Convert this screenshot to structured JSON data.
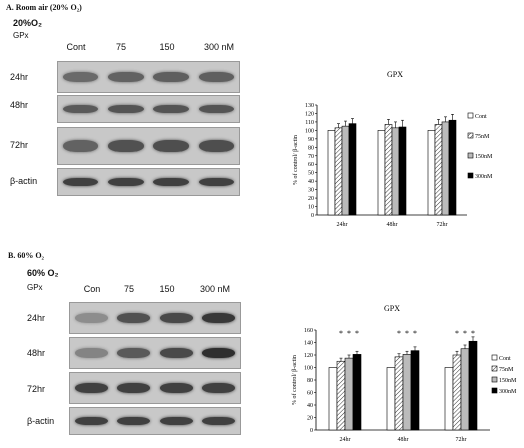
{
  "panelA": {
    "title": "A. Room air (20% O₂)",
    "condition": "20%O₂",
    "gpx_label": "GPx",
    "lanes": [
      "Cont",
      "75",
      "150",
      "300 nM"
    ],
    "rows": [
      "24hr",
      "48hr",
      "72hr",
      "β-actin"
    ],
    "band_intensity": [
      [
        0.55,
        0.6,
        0.62,
        0.62
      ],
      [
        0.65,
        0.68,
        0.68,
        0.68
      ],
      [
        0.6,
        0.7,
        0.72,
        0.72
      ],
      [
        0.8,
        0.8,
        0.8,
        0.8
      ]
    ]
  },
  "panelB": {
    "title": "B. 60% O₂",
    "condition": "60% O₂",
    "gpx_label": "GPx",
    "lanes": [
      "Con",
      "75",
      "150",
      "300 nM"
    ],
    "rows": [
      "24hr",
      "48hr",
      "72hr",
      "β-actin"
    ],
    "band_intensity": [
      [
        0.35,
        0.7,
        0.75,
        0.85
      ],
      [
        0.4,
        0.65,
        0.75,
        0.9
      ],
      [
        0.8,
        0.8,
        0.8,
        0.8
      ],
      [
        0.8,
        0.8,
        0.8,
        0.8
      ]
    ]
  },
  "chart_data": [
    {
      "type": "bar",
      "title": "GPX",
      "ylabel": "% of control/ β-actin",
      "categories": [
        "24hr",
        "48hr",
        "72hr"
      ],
      "ylim": [
        0,
        130
      ],
      "yticks": [
        0,
        10,
        20,
        30,
        40,
        50,
        60,
        70,
        80,
        90,
        100,
        110,
        120,
        130
      ],
      "legend_position": "right",
      "series": [
        {
          "name": "Cont",
          "fill": "white",
          "values": [
            100,
            100,
            100
          ],
          "errors": [
            0,
            0,
            0
          ]
        },
        {
          "name": "75nM",
          "fill": "hatch",
          "values": [
            103,
            107,
            107
          ],
          "errors": [
            5,
            6,
            6
          ]
        },
        {
          "name": "150nM",
          "fill": "lightgray",
          "values": [
            105,
            103,
            110
          ],
          "errors": [
            6,
            7,
            6
          ]
        },
        {
          "name": "300nM",
          "fill": "black",
          "values": [
            108,
            104,
            112
          ],
          "errors": [
            6,
            8,
            7
          ]
        }
      ]
    },
    {
      "type": "bar",
      "title": "GPX",
      "ylabel": "% of control/ β-actin",
      "categories": [
        "24hr",
        "48hr",
        "72hr"
      ],
      "ylim": [
        0,
        160
      ],
      "yticks": [
        0,
        20,
        40,
        60,
        80,
        100,
        120,
        140,
        160
      ],
      "legend_position": "right",
      "significance_marker": "*",
      "series": [
        {
          "name": "Cont",
          "fill": "white",
          "values": [
            100,
            100,
            100
          ],
          "errors": [
            0,
            0,
            0
          ]
        },
        {
          "name": "75nM",
          "fill": "hatch",
          "values": [
            110,
            117,
            120
          ],
          "errors": [
            5,
            5,
            6
          ]
        },
        {
          "name": "150nM",
          "fill": "lightgray",
          "values": [
            115,
            121,
            130
          ],
          "errors": [
            5,
            5,
            6
          ]
        },
        {
          "name": "300nM",
          "fill": "black",
          "values": [
            121,
            127,
            142
          ],
          "errors": [
            5,
            6,
            7
          ]
        }
      ]
    }
  ]
}
